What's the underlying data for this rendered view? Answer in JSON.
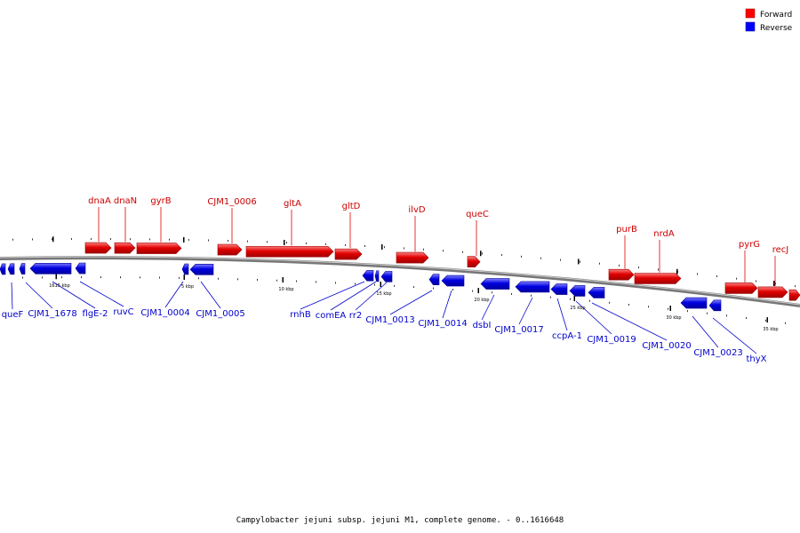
{
  "legend": {
    "forward": {
      "label": "Forward",
      "color": "#ff0000"
    },
    "reverse": {
      "label": "Reverse",
      "color": "#0000ff"
    }
  },
  "footer": "Campylobacter jejuni subsp. jejuni M1, complete genome. - 0..1616648",
  "ticks": [
    "1615 kbp",
    "5 kbp",
    "10 kbp",
    "15 kbp",
    "20 kbp",
    "25 kbp",
    "30 kbp",
    "35 kbp"
  ],
  "forward_genes": [
    "dnaA",
    "dnaN",
    "gyrB",
    "CJM1_0006",
    "gltA",
    "gltD",
    "ilvD",
    "queC",
    "purB",
    "nrdA",
    "pyrG",
    "recJ"
  ],
  "reverse_genes": [
    "queF",
    "CJM1_1678",
    "flgE-2",
    "ruvC",
    "CJM1_0004",
    "CJM1_0005",
    "rnhB",
    "comEA",
    "rr2",
    "CJM1_0013",
    "CJM1_0014",
    "dsbI",
    "CJM1_0017",
    "ccpA-1",
    "CJM1_0019",
    "CJM1_0020",
    "CJM1_0023",
    "thyX"
  ]
}
